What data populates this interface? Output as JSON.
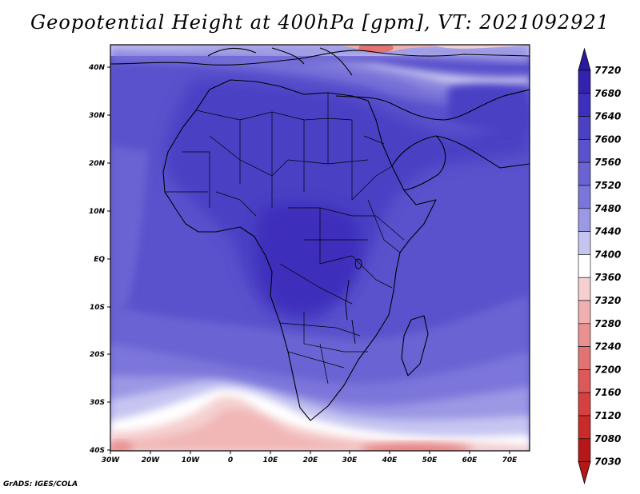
{
  "title": "Geopotential Height at 400hPa [gpm], VT: 2021092921",
  "credit": "GrADS: IGES/COLA",
  "map": {
    "region": "Africa",
    "lat_labels": [
      "40N",
      "30N",
      "20N",
      "10N",
      "EQ",
      "10S",
      "20S",
      "30S",
      "40S"
    ],
    "lon_labels": [
      "30W",
      "20W",
      "10W",
      "0",
      "10E",
      "20E",
      "30E",
      "40E",
      "50E",
      "60E",
      "70E"
    ]
  },
  "colorbar": {
    "levels": [
      "7720",
      "7680",
      "7640",
      "7600",
      "7560",
      "7520",
      "7480",
      "7440",
      "7400",
      "7360",
      "7320",
      "7280",
      "7240",
      "7200",
      "7160",
      "7120",
      "7080",
      "7030"
    ],
    "colors": [
      "#2a1aa0",
      "#3322ae",
      "#3c2fbb",
      "#4a40c4",
      "#5a51cc",
      "#6a63d3",
      "#7b76da",
      "#9b98e4",
      "#c6c5f1",
      "#ffffff",
      "#f6d0d0",
      "#f0b0b0",
      "#e99090",
      "#e37373",
      "#dd5858",
      "#d64040",
      "#c92a2a",
      "#b51818"
    ]
  },
  "chart_data": {
    "type": "heatmap",
    "title": "Geopotential Height at 400hPa [gpm], VT: 2021092921",
    "variable": "Geopotential Height",
    "units": "gpm",
    "pressure_level": "400hPa",
    "valid_time": "2021092921",
    "lon_range": [
      "30W",
      "75E"
    ],
    "lat_range": [
      "40S",
      "45N"
    ],
    "contour_levels": [
      7030,
      7080,
      7120,
      7160,
      7200,
      7240,
      7280,
      7320,
      7360,
      7400,
      7440,
      7480,
      7520,
      7560,
      7600,
      7640,
      7680,
      7720
    ]
  }
}
